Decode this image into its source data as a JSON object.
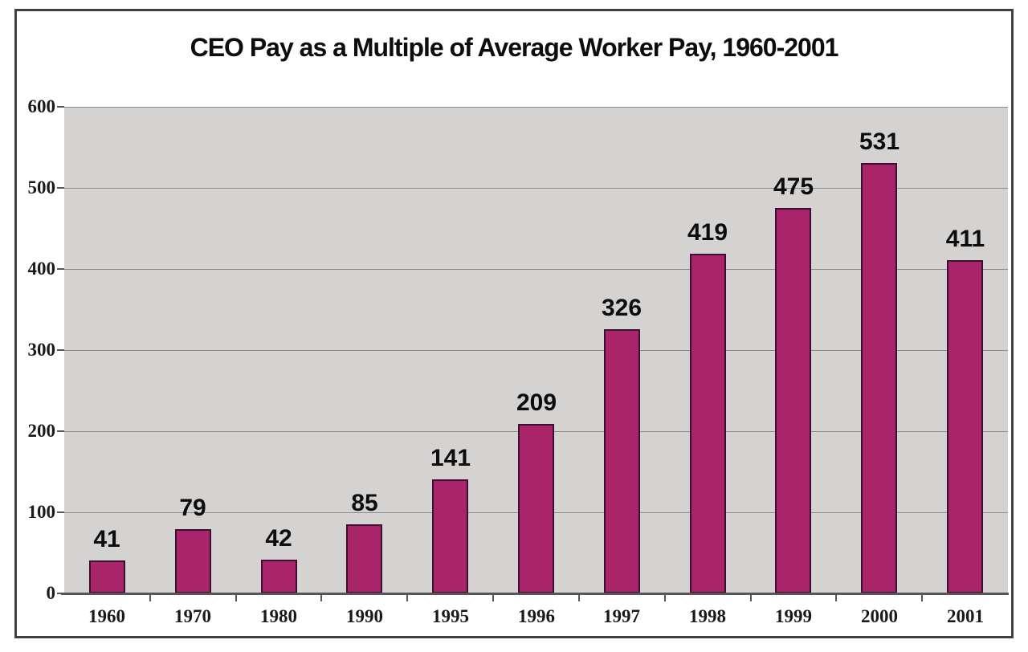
{
  "chart": {
    "colors": {
      "bar_fill": "#a9246b",
      "bar_border": "#3c1030",
      "plot_background": "#d5d3d1",
      "gridline": "#8c8c8c",
      "axis_line": "#565656",
      "frame_border": "#414141",
      "text": "#0d0d0d",
      "page_background": "#ffffff"
    }
  },
  "chart_data": {
    "type": "bar",
    "title": "CEO Pay as a Multiple of Average Worker Pay, 1960-2001",
    "categories": [
      "1960",
      "1970",
      "1980",
      "1990",
      "1995",
      "1996",
      "1997",
      "1998",
      "1999",
      "2000",
      "2001"
    ],
    "values": [
      41,
      79,
      42,
      85,
      141,
      209,
      326,
      419,
      475,
      531,
      411
    ],
    "bar_value_labels": [
      "41",
      "79",
      "42",
      "85",
      "141",
      "209",
      "326",
      "419",
      "475",
      "531",
      "411"
    ],
    "xlabel": "",
    "ylabel": "",
    "ylim": [
      0,
      600
    ],
    "yticks": [
      0,
      100,
      200,
      300,
      400,
      500,
      600
    ],
    "ytick_labels": [
      "0",
      "100",
      "200",
      "300",
      "400",
      "500",
      "600"
    ],
    "grid": true,
    "gridlines_at": [
      100,
      200,
      300,
      400,
      500
    ],
    "legend": "none",
    "data_labels_position": "above-bars"
  }
}
